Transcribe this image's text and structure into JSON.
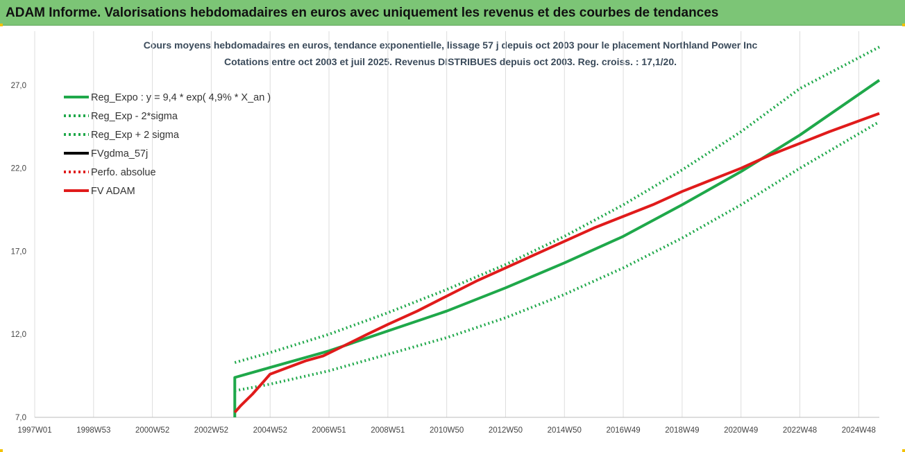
{
  "banner": {
    "title": "ADAM Informe. Valorisations hebdomadaires en euros avec uniquement les revenus et des courbes de tendances",
    "background_color": "#7cc576"
  },
  "chart_data": {
    "type": "line",
    "title_line1": "Cours moyens hebdomadaires en euros, tendance exponentielle, lissage 57 j depuis oct 2003 pour le placement Northland Power Inc",
    "title_line2": "Cotations entre oct 2003 et juil 2025. Revenus DISTRIBUES depuis oct 2003. Reg. croiss. : 17,1/20.",
    "xlabel": "",
    "ylabel": "",
    "xlim": [
      1997.0,
      2025.7
    ],
    "ylim": [
      7.0,
      29.0
    ],
    "y_ticks": [
      "7,0",
      "12,0",
      "17,0",
      "22,0",
      "27,0"
    ],
    "y_tick_values": [
      7,
      12,
      17,
      22,
      27
    ],
    "x_ticks": [
      "1997W01",
      "1998W53",
      "2000W52",
      "2002W52",
      "2004W52",
      "2006W51",
      "2008W51",
      "2010W50",
      "2012W50",
      "2014W50",
      "2016W49",
      "2018W49",
      "2020W49",
      "2022W48",
      "2024W48"
    ],
    "x_tick_values": [
      1997.0,
      1999.0,
      2001.0,
      2003.0,
      2005.0,
      2007.0,
      2009.0,
      2011.0,
      2013.0,
      2015.0,
      2017.0,
      2019.0,
      2021.0,
      2023.0,
      2025.0
    ],
    "grid": "vertical",
    "legend_position": "top-left",
    "series": [
      {
        "name": "Reg_Expo : y = 9,4 * exp( 4,9% *  X_an )",
        "color": "#1fa84a",
        "style": "solid",
        "x": [
          2003.8,
          2003.8,
          2005.0,
          2007.0,
          2009.0,
          2011.0,
          2013.0,
          2015.0,
          2017.0,
          2019.0,
          2021.0,
          2023.0,
          2025.7
        ],
        "y": [
          7.0,
          9.4,
          10.0,
          11.0,
          12.2,
          13.4,
          14.8,
          16.3,
          17.9,
          19.8,
          21.8,
          24.0,
          27.3
        ]
      },
      {
        "name": "Reg_Exp - 2*sigma",
        "color": "#1fa84a",
        "style": "dotted",
        "x": [
          2003.8,
          2005.0,
          2007.0,
          2009.0,
          2011.0,
          2013.0,
          2015.0,
          2017.0,
          2019.0,
          2021.0,
          2023.0,
          2025.7
        ],
        "y": [
          8.6,
          9.0,
          9.8,
          10.8,
          11.8,
          13.0,
          14.4,
          16.0,
          17.8,
          19.8,
          22.0,
          24.8
        ]
      },
      {
        "name": "Reg_Exp + 2 sigma",
        "color": "#1fa84a",
        "style": "dotted",
        "x": [
          2003.8,
          2005.0,
          2007.0,
          2009.0,
          2011.0,
          2013.0,
          2015.0,
          2017.0,
          2019.0,
          2021.0,
          2023.0,
          2025.7
        ],
        "y": [
          10.3,
          10.9,
          12.0,
          13.3,
          14.7,
          16.2,
          17.9,
          19.8,
          21.9,
          24.2,
          26.8,
          29.3
        ]
      },
      {
        "name": "FVgdma_57j",
        "color": "#000000",
        "style": "solid",
        "x": [],
        "y": []
      },
      {
        "name": "Perfo. absolue",
        "color": "#e01b1b",
        "style": "dotted",
        "x": [],
        "y": []
      },
      {
        "name": "FV ADAM",
        "color": "#e01b1b",
        "style": "solid",
        "x": [
          2003.8,
          2004.0,
          2004.4,
          2004.8,
          2005.0,
          2005.6,
          2006.2,
          2006.8,
          2007.5,
          2008.3,
          2009.0,
          2010.0,
          2011.0,
          2012.0,
          2013.0,
          2014.0,
          2015.0,
          2016.0,
          2017.0,
          2018.0,
          2019.0,
          2020.0,
          2021.0,
          2022.0,
          2023.0,
          2024.0,
          2025.7
        ],
        "y": [
          7.3,
          7.7,
          8.4,
          9.2,
          9.6,
          10.0,
          10.4,
          10.7,
          11.3,
          12.0,
          12.6,
          13.4,
          14.3,
          15.2,
          16.0,
          16.8,
          17.6,
          18.4,
          19.1,
          19.8,
          20.6,
          21.3,
          22.0,
          22.8,
          23.5,
          24.2,
          25.3
        ]
      }
    ]
  }
}
